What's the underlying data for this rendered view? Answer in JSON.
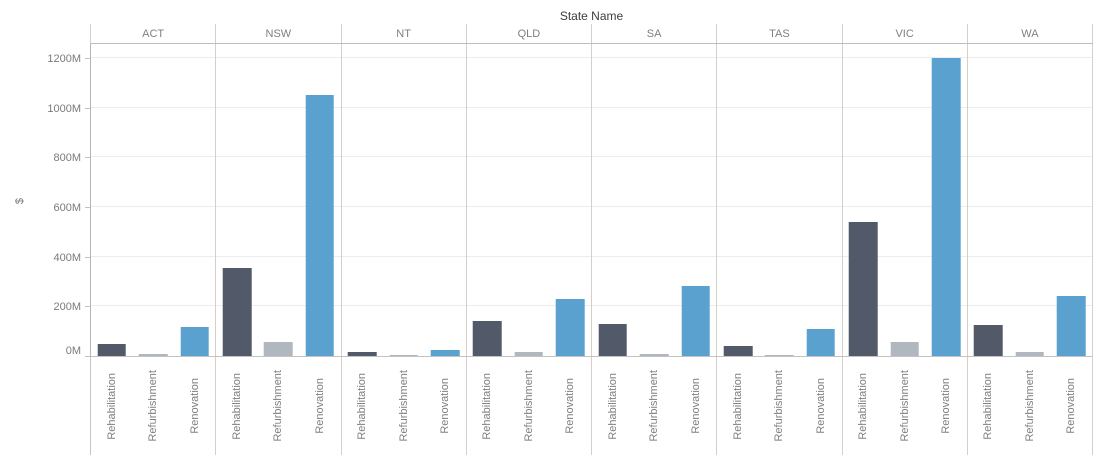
{
  "chart_data": {
    "type": "bar",
    "title": "State Name",
    "ylabel": "$",
    "ylim": [
      0,
      1260
    ],
    "grid": true,
    "y_ticks": [
      {
        "value": 0,
        "label": "0M"
      },
      {
        "value": 200,
        "label": "200M"
      },
      {
        "value": 400,
        "label": "400M"
      },
      {
        "value": 600,
        "label": "600M"
      },
      {
        "value": 800,
        "label": "800M"
      },
      {
        "value": 1000,
        "label": "1000M"
      },
      {
        "value": 1200,
        "label": "1200M"
      }
    ],
    "subcategories": [
      "Rehabilitation",
      "Refurbishment",
      "Renovation"
    ],
    "series_colors": {
      "Rehabilitation": "#525a6a",
      "Refurbishment": "#b0b7bf",
      "Renovation": "#5ba1d0"
    },
    "groups": [
      {
        "name": "ACT",
        "values": [
          50,
          8,
          115
        ]
      },
      {
        "name": "NSW",
        "values": [
          355,
          55,
          1050
        ]
      },
      {
        "name": "NT",
        "values": [
          15,
          3,
          25
        ]
      },
      {
        "name": "QLD",
        "values": [
          140,
          15,
          230
        ]
      },
      {
        "name": "SA",
        "values": [
          130,
          10,
          280
        ]
      },
      {
        "name": "TAS",
        "values": [
          40,
          5,
          110
        ]
      },
      {
        "name": "VIC",
        "values": [
          540,
          55,
          1200
        ]
      },
      {
        "name": "WA",
        "values": [
          125,
          15,
          240
        ]
      }
    ]
  }
}
